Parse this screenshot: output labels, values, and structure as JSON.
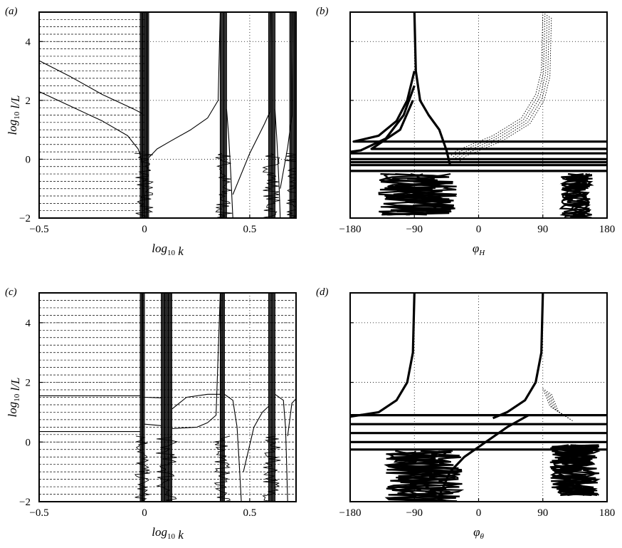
{
  "chart_data": [
    {
      "type": "line",
      "panel": "(a)",
      "xlabel": "log₁₀ k",
      "ylabel": "log₁₀ l/L",
      "xlim": [
        -0.5,
        0.72
      ],
      "ylim": [
        -2,
        5
      ],
      "xticks": [
        -0.5,
        0,
        0.5
      ],
      "xtick_labels": [
        "−0.5",
        "0",
        "0.5"
      ],
      "yticks": [
        -2,
        0,
        2,
        4
      ],
      "ytick_labels": [
        "−2",
        "0",
        "2",
        "4"
      ],
      "grid": "dotted",
      "dense_dashed_grid_x": [
        -0.5,
        0
      ],
      "vertical_bands": [
        [
          -0.02,
          0.02
        ],
        [
          0.36,
          0.39
        ],
        [
          0.59,
          0.62
        ],
        [
          0.69,
          0.72
        ]
      ],
      "series": [
        {
          "values": [
            [
              -0.5,
              3.35
            ],
            [
              -0.35,
              2.8
            ],
            [
              -0.2,
              2.2
            ],
            [
              -0.05,
              1.7
            ],
            [
              -0.01,
              1.55
            ]
          ]
        },
        {
          "values": [
            [
              -0.5,
              2.3
            ],
            [
              -0.35,
              1.8
            ],
            [
              -0.2,
              1.3
            ],
            [
              -0.08,
              0.8
            ],
            [
              -0.03,
              0.35
            ],
            [
              -0.01,
              -0.1
            ],
            [
              0.0,
              -2.0
            ]
          ]
        },
        {
          "values": [
            [
              0.02,
              0.05
            ],
            [
              0.06,
              0.35
            ],
            [
              0.12,
              0.6
            ],
            [
              0.22,
              1.0
            ],
            [
              0.3,
              1.4
            ],
            [
              0.35,
              2.0
            ],
            [
              0.36,
              5.0
            ]
          ]
        },
        {
          "values": [
            [
              0.39,
              1.7
            ],
            [
              0.4,
              0.8
            ],
            [
              0.41,
              -0.5
            ],
            [
              0.42,
              -2.0
            ]
          ]
        },
        {
          "values": [
            [
              0.42,
              -1.2
            ],
            [
              0.5,
              0.2
            ],
            [
              0.57,
              1.2
            ],
            [
              0.595,
              1.6
            ],
            [
              0.6,
              5.0
            ]
          ]
        },
        {
          "values": [
            [
              0.62,
              1.7
            ],
            [
              0.63,
              0.5
            ],
            [
              0.64,
              -1.0
            ],
            [
              0.645,
              -2.0
            ]
          ]
        },
        {
          "values": [
            [
              0.645,
              -1.0
            ],
            [
              0.68,
              0.4
            ],
            [
              0.7,
              1.5
            ],
            [
              0.705,
              5.0
            ]
          ]
        }
      ]
    },
    {
      "type": "line",
      "panel": "(b)",
      "xlabel": "φ_H",
      "ylabel": "",
      "xlim": [
        -180,
        180
      ],
      "ylim": [
        -2,
        5
      ],
      "xticks": [
        -180,
        -90,
        0,
        90,
        180
      ],
      "xtick_labels": [
        "−180",
        "−90",
        "0",
        "90",
        "180"
      ],
      "yticks": [
        -2,
        0,
        2,
        4
      ],
      "grid": "dotted",
      "series": [
        {
          "values": [
            [
              -90,
              5.0
            ],
            [
              -88,
              3.0
            ],
            [
              -82,
              2.0
            ],
            [
              -70,
              1.5
            ],
            [
              -55,
              1.0
            ],
            [
              -45,
              0.3
            ],
            [
              -40,
              -0.2
            ]
          ]
        },
        {
          "values": [
            [
              -90,
              3.0
            ],
            [
              -100,
              2.0
            ],
            [
              -115,
              1.3
            ],
            [
              -140,
              0.8
            ],
            [
              -175,
              0.6
            ],
            [
              180,
              0.6
            ]
          ]
        },
        {
          "values": [
            [
              -90,
              2.5
            ],
            [
              -105,
              1.5
            ],
            [
              -130,
              0.7
            ],
            [
              -165,
              0.3
            ],
            [
              -180,
              0.25
            ]
          ]
        },
        {
          "values": [
            [
              -92,
              2.0
            ],
            [
              -110,
              1.0
            ],
            [
              -150,
              0.35
            ],
            [
              180,
              0.35
            ]
          ]
        },
        {
          "values": [
            [
              -180,
              0.0
            ],
            [
              180,
              0.0
            ]
          ]
        },
        {
          "values": [
            [
              -180,
              -0.2
            ],
            [
              180,
              -0.2
            ]
          ]
        },
        {
          "values": [
            [
              -180,
              -0.4
            ],
            [
              180,
              -0.4
            ]
          ]
        },
        {
          "values": [
            [
              -180,
              0.2
            ],
            [
              180,
              0.2
            ]
          ]
        },
        {
          "values": [
            [
              -180,
              -0.1
            ],
            [
              180,
              -0.1
            ]
          ]
        }
      ],
      "dotted_series": [
        {
          "values": [
            [
              90,
              5.0
            ],
            [
              88,
              3.0
            ],
            [
              80,
              2.2
            ],
            [
              60,
              1.4
            ],
            [
              20,
              0.8
            ],
            [
              -30,
              0.3
            ],
            [
              -40,
              0.1
            ]
          ]
        }
      ],
      "noise_bands": [
        {
          "x_range": [
            -140,
            -30
          ],
          "y_range": [
            -1.9,
            -0.5
          ]
        },
        {
          "x_range": [
            115,
            160
          ],
          "y_range": [
            -2.0,
            -0.5
          ]
        }
      ]
    },
    {
      "type": "line",
      "panel": "(c)",
      "xlabel": "log₁₀ k",
      "ylabel": "log₁₀ l/L",
      "xlim": [
        -0.5,
        0.72
      ],
      "ylim": [
        -2,
        5
      ],
      "xticks": [
        -0.5,
        0,
        0.5
      ],
      "xtick_labels": [
        "−0.5",
        "0",
        "0.5"
      ],
      "yticks": [
        -2,
        0,
        2,
        4
      ],
      "ytick_labels": [
        "−2",
        "0",
        "2",
        "4"
      ],
      "grid": "dotted",
      "dense_dashed_grid_x": [
        -0.5,
        0.72
      ],
      "vertical_bands": [
        [
          -0.02,
          0.0
        ],
        [
          0.08,
          0.13
        ],
        [
          0.36,
          0.38
        ],
        [
          0.59,
          0.62
        ]
      ],
      "series": [
        {
          "values": [
            [
              -0.5,
              1.55
            ],
            [
              -0.02,
              1.55
            ]
          ]
        },
        {
          "values": [
            [
              -0.5,
              0.35
            ],
            [
              -0.02,
              0.35
            ]
          ]
        },
        {
          "values": [
            [
              0.0,
              1.5
            ],
            [
              0.08,
              1.48
            ]
          ]
        },
        {
          "values": [
            [
              0.13,
              1.1
            ],
            [
              0.2,
              1.5
            ],
            [
              0.3,
              1.6
            ],
            [
              0.36,
              1.6
            ]
          ]
        },
        {
          "values": [
            [
              0.0,
              0.6
            ],
            [
              0.08,
              0.55
            ]
          ]
        },
        {
          "values": [
            [
              0.13,
              0.45
            ],
            [
              0.25,
              0.5
            ],
            [
              0.3,
              0.65
            ],
            [
              0.34,
              0.9
            ],
            [
              0.36,
              5.0
            ]
          ]
        },
        {
          "values": [
            [
              0.38,
              1.6
            ],
            [
              0.42,
              1.4
            ],
            [
              0.44,
              0.5
            ],
            [
              0.45,
              -0.7
            ],
            [
              0.46,
              -2.0
            ]
          ]
        },
        {
          "values": [
            [
              0.47,
              -1.0
            ],
            [
              0.52,
              0.5
            ],
            [
              0.56,
              1.0
            ],
            [
              0.59,
              1.2
            ]
          ]
        },
        {
          "values": [
            [
              0.62,
              1.6
            ],
            [
              0.66,
              1.4
            ],
            [
              0.67,
              0.5
            ],
            [
              0.675,
              -0.7
            ],
            [
              0.68,
              -2.0
            ]
          ]
        },
        {
          "values": [
            [
              0.68,
              0.2
            ],
            [
              0.7,
              1.3
            ],
            [
              0.72,
              1.45
            ]
          ]
        }
      ]
    },
    {
      "type": "line",
      "panel": "(d)",
      "xlabel": "φ_θ",
      "ylabel": "",
      "xlim": [
        -180,
        180
      ],
      "ylim": [
        -2,
        5
      ],
      "xticks": [
        -180,
        -90,
        0,
        90,
        180
      ],
      "xtick_labels": [
        "−180",
        "−90",
        "0",
        "90",
        "180"
      ],
      "yticks": [
        -2,
        0,
        2,
        4
      ],
      "grid": "dotted",
      "series": [
        {
          "values": [
            [
              -90,
              5.0
            ],
            [
              -92,
              3.0
            ],
            [
              -100,
              2.0
            ],
            [
              -115,
              1.4
            ],
            [
              -140,
              1.0
            ],
            [
              -180,
              0.85
            ]
          ]
        },
        {
          "values": [
            [
              90,
              5.0
            ],
            [
              88,
              3.0
            ],
            [
              80,
              2.0
            ],
            [
              65,
              1.4
            ],
            [
              40,
              1.0
            ],
            [
              20,
              0.8
            ]
          ]
        },
        {
          "values": [
            [
              -180,
              0.9
            ],
            [
              180,
              0.9
            ]
          ]
        },
        {
          "values": [
            [
              -180,
              0.6
            ],
            [
              180,
              0.6
            ]
          ]
        },
        {
          "values": [
            [
              -180,
              0.3
            ],
            [
              180,
              0.3
            ]
          ]
        },
        {
          "values": [
            [
              -180,
              0.0
            ],
            [
              180,
              0.0
            ]
          ]
        },
        {
          "values": [
            [
              -180,
              -0.25
            ],
            [
              180,
              -0.25
            ]
          ]
        },
        {
          "values": [
            [
              -55,
              -1.8
            ],
            [
              -40,
              -1.0
            ],
            [
              -20,
              -0.5
            ],
            [
              10,
              0.0
            ],
            [
              40,
              0.5
            ],
            [
              70,
              0.9
            ]
          ]
        }
      ],
      "dotted_series": [
        {
          "values": [
            [
              90,
              1.8
            ],
            [
              100,
              1.2
            ],
            [
              120,
              0.9
            ]
          ]
        }
      ],
      "noise_bands": [
        {
          "x_range": [
            -130,
            -20
          ],
          "y_range": [
            -2.0,
            -0.3
          ]
        },
        {
          "x_range": [
            100,
            170
          ],
          "y_range": [
            -1.8,
            -0.1
          ]
        }
      ]
    }
  ]
}
